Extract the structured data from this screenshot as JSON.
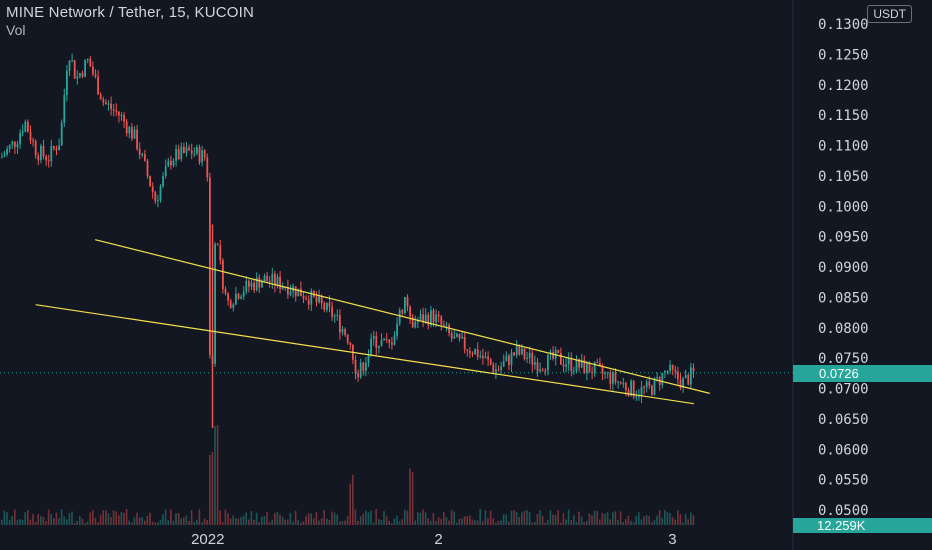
{
  "header": {
    "title": "MINE Network / Tether, 15, KUCOIN",
    "indicator": "Vol"
  },
  "currency_button": "USDT",
  "last_price_label": "0.0726",
  "volume_label": "12.259K",
  "colors": {
    "background": "#131722",
    "up": "#26a69a",
    "down": "#ef5350",
    "trendline": "#f5e04a",
    "axis_text": "#d1d4dc"
  },
  "chart_data": {
    "type": "candlestick",
    "title": "MINE Network / Tether, 15, KUCOIN",
    "y_axis": {
      "unit": "USDT",
      "range": [
        0.048,
        0.131
      ],
      "ticks": [
        "0.1300",
        "0.1250",
        "0.1200",
        "0.1150",
        "0.1100",
        "0.1050",
        "0.1000",
        "0.0950",
        "0.0900",
        "0.0850",
        "0.0800",
        "0.0750",
        "0.0700",
        "0.0650",
        "0.0600",
        "0.0550",
        "0.0500"
      ]
    },
    "x_axis": {
      "ticks": [
        "2022",
        "2",
        "3"
      ]
    },
    "last_price": 0.0726,
    "last_volume": "12.259K",
    "price_path": [
      {
        "t": 0.0,
        "p": 0.108
      },
      {
        "t": 0.02,
        "p": 0.111
      },
      {
        "t": 0.03,
        "p": 0.114
      },
      {
        "t": 0.045,
        "p": 0.109
      },
      {
        "t": 0.06,
        "p": 0.108
      },
      {
        "t": 0.075,
        "p": 0.111
      },
      {
        "t": 0.085,
        "p": 0.126
      },
      {
        "t": 0.095,
        "p": 0.121
      },
      {
        "t": 0.11,
        "p": 0.124
      },
      {
        "t": 0.13,
        "p": 0.117
      },
      {
        "t": 0.15,
        "p": 0.115
      },
      {
        "t": 0.17,
        "p": 0.111
      },
      {
        "t": 0.195,
        "p": 0.101
      },
      {
        "t": 0.215,
        "p": 0.108
      },
      {
        "t": 0.24,
        "p": 0.109
      },
      {
        "t": 0.26,
        "p": 0.108
      },
      {
        "t": 0.265,
        "p": 0.062
      },
      {
        "t": 0.27,
        "p": 0.095
      },
      {
        "t": 0.285,
        "p": 0.084
      },
      {
        "t": 0.3,
        "p": 0.086
      },
      {
        "t": 0.33,
        "p": 0.088
      },
      {
        "t": 0.36,
        "p": 0.087
      },
      {
        "t": 0.39,
        "p": 0.085
      },
      {
        "t": 0.42,
        "p": 0.082
      },
      {
        "t": 0.44,
        "p": 0.078
      },
      {
        "t": 0.45,
        "p": 0.072
      },
      {
        "t": 0.47,
        "p": 0.078
      },
      {
        "t": 0.49,
        "p": 0.077
      },
      {
        "t": 0.51,
        "p": 0.085
      },
      {
        "t": 0.52,
        "p": 0.081
      },
      {
        "t": 0.545,
        "p": 0.082
      },
      {
        "t": 0.57,
        "p": 0.078
      },
      {
        "t": 0.6,
        "p": 0.076
      },
      {
        "t": 0.625,
        "p": 0.073
      },
      {
        "t": 0.65,
        "p": 0.076
      },
      {
        "t": 0.68,
        "p": 0.074
      },
      {
        "t": 0.7,
        "p": 0.075
      },
      {
        "t": 0.72,
        "p": 0.074
      },
      {
        "t": 0.75,
        "p": 0.073
      },
      {
        "t": 0.78,
        "p": 0.071
      },
      {
        "t": 0.8,
        "p": 0.0695
      },
      {
        "t": 0.82,
        "p": 0.07
      },
      {
        "t": 0.84,
        "p": 0.073
      },
      {
        "t": 0.86,
        "p": 0.071
      },
      {
        "t": 0.875,
        "p": 0.0726
      }
    ],
    "trendlines": [
      {
        "from": {
          "t": 0.12,
          "p": 0.0945
        },
        "to": {
          "t": 0.895,
          "p": 0.0692
        }
      },
      {
        "from": {
          "t": 0.045,
          "p": 0.0838
        },
        "to": {
          "t": 0.875,
          "p": 0.0675
        }
      }
    ],
    "grid": false
  }
}
